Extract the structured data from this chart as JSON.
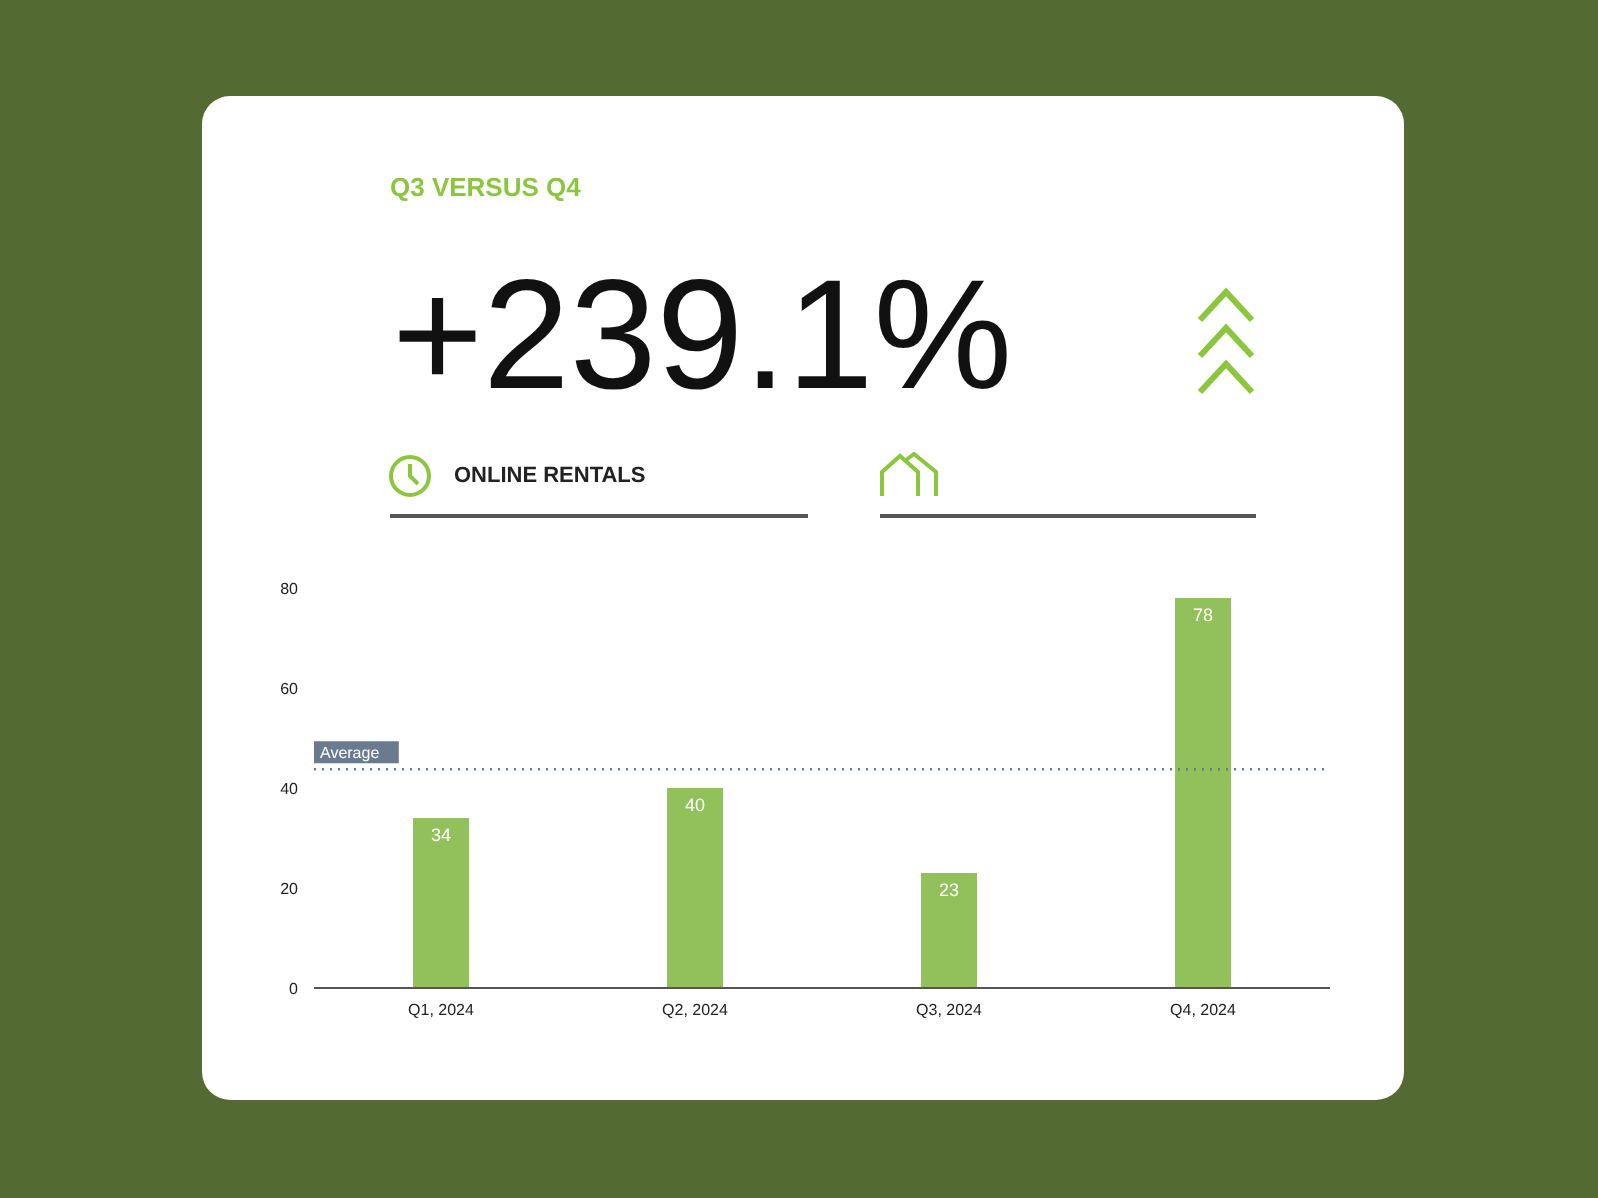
{
  "chart_data": {
    "type": "bar",
    "title": "Q3 VERSUS Q4",
    "subtitle": "+239.1%",
    "annotations": [
      "ONLINE RENTALS"
    ],
    "categories": [
      "Q1, 2024",
      "Q2, 2024",
      "Q3, 2024",
      "Q4, 2024"
    ],
    "values": [
      34,
      40,
      23,
      78
    ],
    "color": "#92c05a",
    "ylim": [
      0,
      80
    ],
    "yticks": [
      0,
      20,
      40,
      60,
      80
    ],
    "grid": false,
    "data_labels": true,
    "ref_lines": [
      {
        "axis": "y",
        "value": 43.75,
        "label": "Average",
        "line_style": "dotted",
        "color": "#6b7b8f"
      }
    ]
  }
}
